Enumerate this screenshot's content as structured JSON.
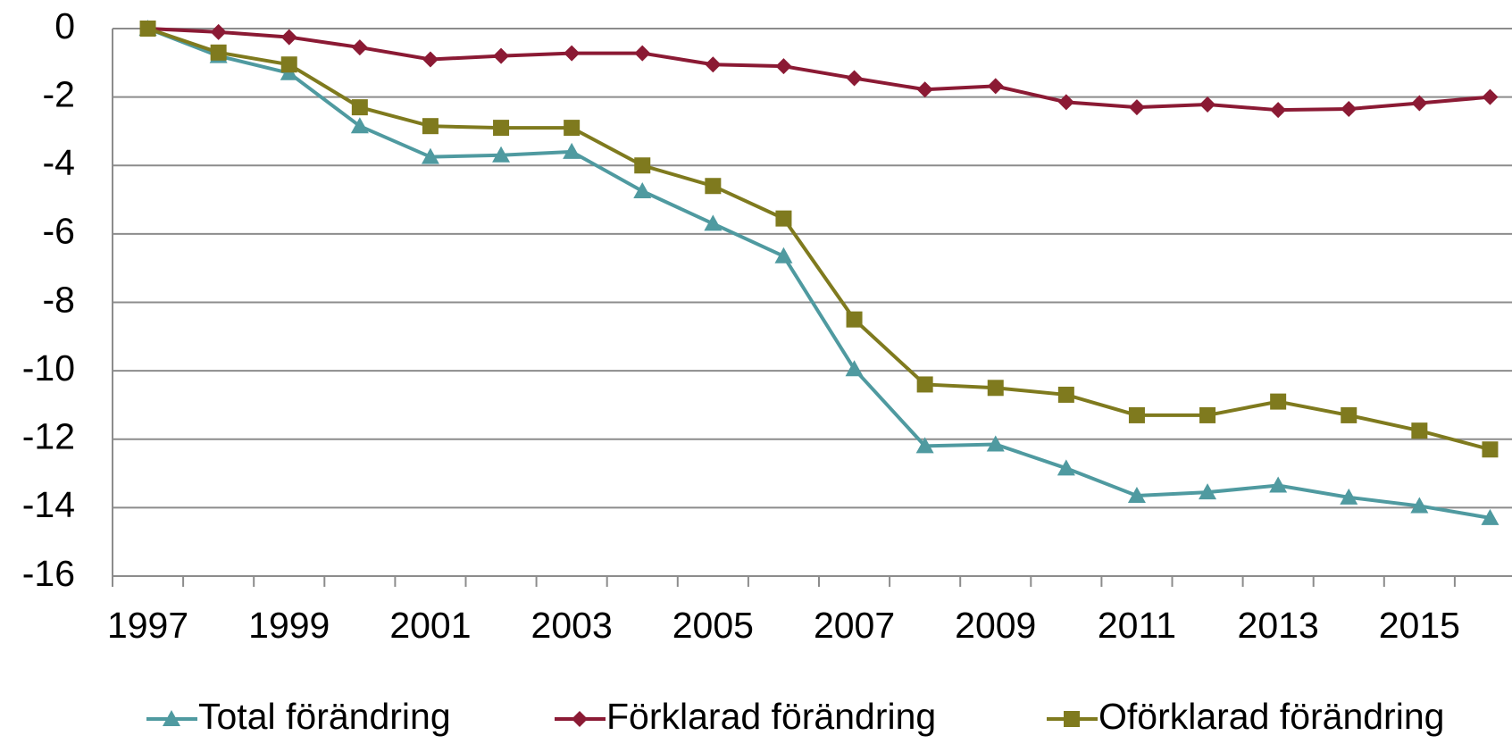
{
  "chart_data": {
    "type": "line",
    "categories": [
      "1997",
      null,
      "1999",
      null,
      "2001",
      null,
      "2003",
      null,
      "2005",
      null,
      "2007",
      null,
      "2009",
      null,
      "2011",
      null,
      "2013",
      null,
      "2015",
      null
    ],
    "series": [
      {
        "name": "Total förändring",
        "color": "#4f9aa0",
        "marker": "triangle",
        "values": [
          0,
          -0.8,
          -1.3,
          -2.85,
          -3.75,
          -3.7,
          -3.6,
          -4.75,
          -5.7,
          -6.65,
          -9.95,
          -12.2,
          -12.15,
          -12.85,
          -13.65,
          -13.55,
          -13.35,
          -13.7,
          -13.95,
          -14.3
        ]
      },
      {
        "name": "Förklarad förändring",
        "color": "#8b1a34",
        "marker": "diamond",
        "values": [
          0,
          -0.1,
          -0.25,
          -0.55,
          -0.9,
          -0.8,
          -0.72,
          -0.72,
          -1.05,
          -1.1,
          -1.45,
          -1.78,
          -1.68,
          -2.15,
          -2.3,
          -2.22,
          -2.38,
          -2.35,
          -2.18,
          -2.0
        ]
      },
      {
        "name": "Oförklarad förändring",
        "color": "#7f7a1e",
        "marker": "square",
        "values": [
          0,
          -0.7,
          -1.05,
          -2.3,
          -2.85,
          -2.9,
          -2.9,
          -4.0,
          -4.6,
          -5.55,
          -8.5,
          -10.4,
          -10.5,
          -10.7,
          -11.3,
          -11.3,
          -10.9,
          -11.3,
          -11.75,
          -12.3
        ]
      }
    ],
    "ylim": [
      -16,
      0
    ],
    "yticks": [
      0,
      -2,
      -4,
      -6,
      -8,
      -10,
      -12,
      -14,
      -16
    ],
    "grid": true,
    "legend": "bottom"
  }
}
